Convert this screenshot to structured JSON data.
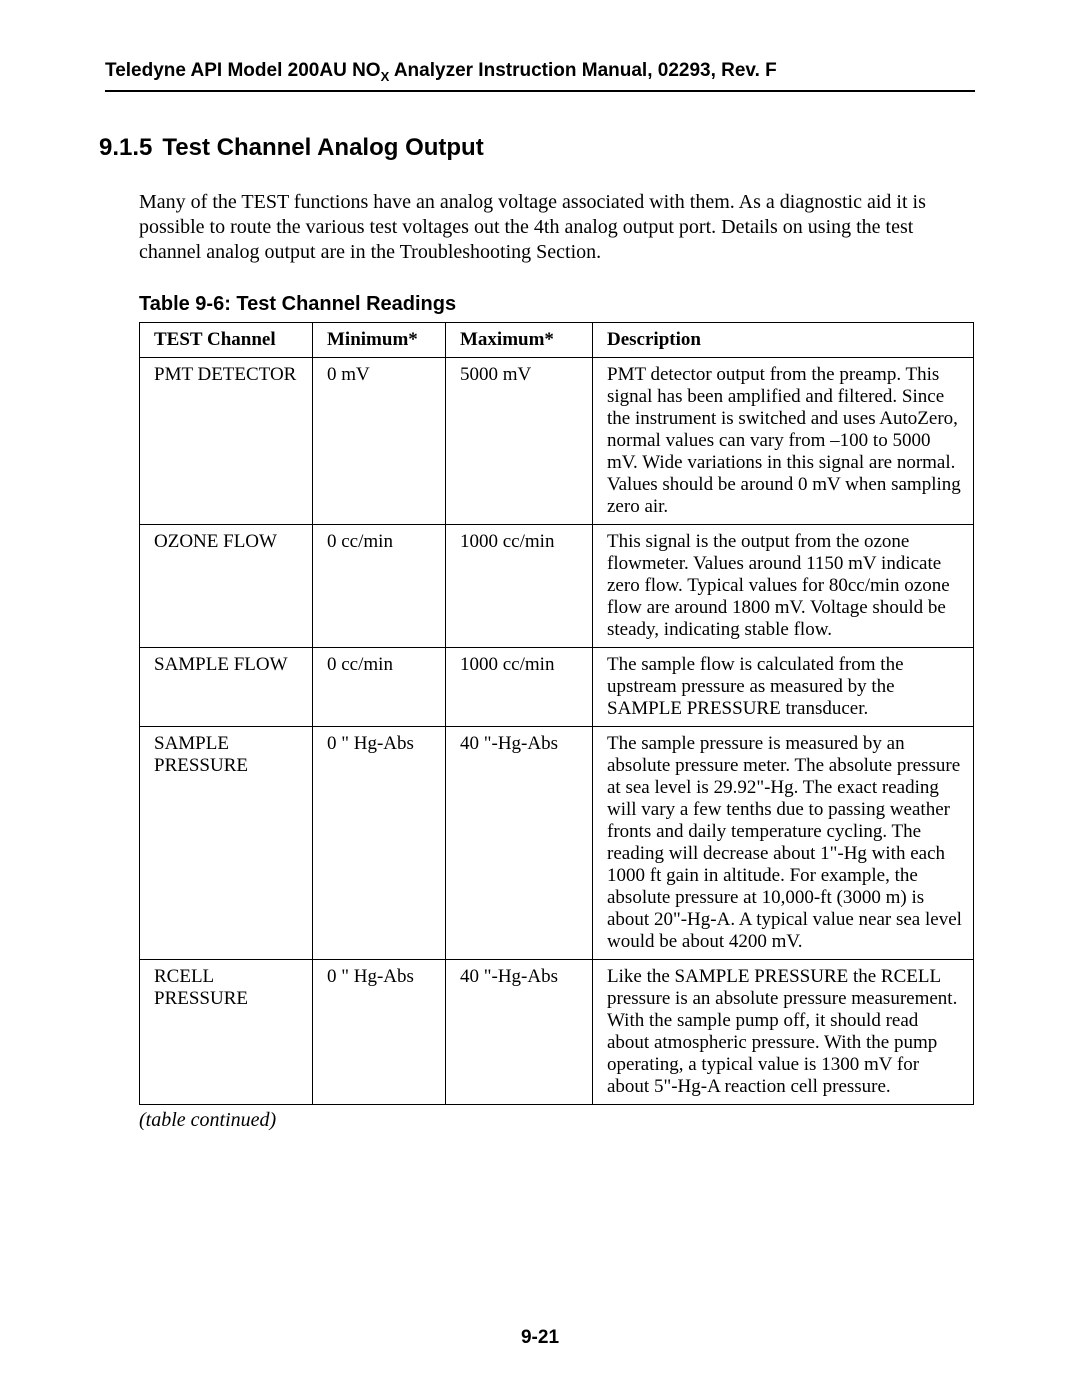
{
  "header": {
    "prefix": "Teledyne API Model 200AU NO",
    "subscript": "X",
    "suffix": " Analyzer Instruction Manual, 02293, Rev. F"
  },
  "section": {
    "number": "9.1.5",
    "title": "Test Channel Analog Output"
  },
  "paragraph": "Many of the TEST functions have an analog voltage associated with them. As a diagnostic aid it is possible to route the various test voltages out the 4th analog output port. Details on using the test channel analog output are in the Troubleshooting Section.",
  "table": {
    "caption": "Table 9-6:  Test Channel Readings",
    "columns": [
      "TEST Channel",
      "Minimum*",
      "Maximum*",
      "Description"
    ],
    "rows": [
      {
        "channel": "PMT DETECTOR",
        "min": "0 mV",
        "max": "5000 mV",
        "desc": "PMT detector output from the preamp. This signal has been amplified and filtered. Since the instrument is switched and uses AutoZero, normal values can vary from –100 to 5000 mV. Wide variations in this signal are normal. Values should be around 0 mV when sampling zero air."
      },
      {
        "channel": "OZONE FLOW",
        "min": "0 cc/min",
        "max": "1000 cc/min",
        "desc": "This signal is the output from the ozone flowmeter. Values around 1150 mV indicate zero flow. Typical values for 80cc/min ozone flow are around 1800 mV. Voltage should be steady, indicating stable flow."
      },
      {
        "channel": "SAMPLE FLOW",
        "min": "0 cc/min",
        "max": "1000 cc/min",
        "desc": "The sample flow is calculated from the upstream pressure as measured by the SAMPLE PRESSURE transducer."
      },
      {
        "channel": "SAMPLE PRESSURE",
        "min": "0 \" Hg-Abs",
        "max": "40 \"-Hg-Abs",
        "desc": "The sample pressure is measured by an absolute pressure meter. The absolute pressure at sea level is 29.92\"-Hg. The exact reading will vary a few tenths due to passing weather fronts and daily temperature cycling. The reading will decrease about 1\"-Hg with each 1000 ft gain in altitude. For example, the absolute pressure at 10,000-ft (3000 m) is about 20\"-Hg-A.  A typical value near sea level would be about 4200 mV."
      },
      {
        "channel": "RCELL PRESSURE",
        "min": "0 \" Hg-Abs",
        "max": "40 \"-Hg-Abs",
        "desc": "Like the SAMPLE PRESSURE the RCELL pressure is an absolute pressure measurement. With the sample pump off, it should read about atmospheric pressure. With the pump operating, a typical value is 1300 mV for about 5\"-Hg-A reaction cell pressure."
      }
    ],
    "continued": "(table continued)"
  },
  "page_number": "9-21"
}
